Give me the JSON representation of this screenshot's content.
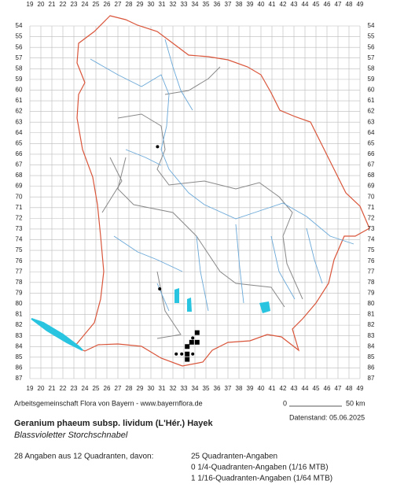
{
  "grid": {
    "columns": [
      19,
      20,
      21,
      22,
      23,
      24,
      25,
      26,
      27,
      28,
      29,
      30,
      31,
      32,
      33,
      34,
      35,
      36,
      37,
      38,
      39,
      40,
      41,
      42,
      43,
      44,
      45,
      46,
      47,
      48,
      49
    ],
    "rows": [
      54,
      55,
      56,
      57,
      58,
      59,
      60,
      61,
      62,
      63,
      64,
      65,
      66,
      67,
      68,
      69,
      70,
      71,
      72,
      73,
      74,
      75,
      76,
      77,
      78,
      79,
      80,
      81,
      82,
      83,
      84,
      85,
      86,
      87
    ]
  },
  "records": [
    {
      "shape": "square",
      "col": 34.2,
      "row": 82.7
    },
    {
      "shape": "square",
      "col": 34.2,
      "row": 83.6
    },
    {
      "shape": "square",
      "col": 33.3,
      "row": 84.0
    },
    {
      "shape": "square",
      "col": 33.3,
      "row": 84.7
    },
    {
      "shape": "square",
      "col": 33.3,
      "row": 85.2
    },
    {
      "shape": "square",
      "col": 33.7,
      "row": 83.6
    },
    {
      "shape": "dot",
      "col": 32.3,
      "row": 84.7
    },
    {
      "shape": "dot",
      "col": 32.8,
      "row": 84.7
    },
    {
      "shape": "dot",
      "col": 33.8,
      "row": 84.7
    },
    {
      "shape": "dot",
      "col": 33.8,
      "row": 83.2
    },
    {
      "shape": "dot",
      "col": 30.8,
      "row": 78.6
    },
    {
      "shape": "dot",
      "col": 30.6,
      "row": 65.3
    }
  ],
  "footer": {
    "credit": "Arbeitsgemeinschaft Flora von Bayern - www.bayernflora.de",
    "scale_start": "0",
    "scale_end": "50 km",
    "date": "Datenstand: 05.06.2025"
  },
  "species": {
    "scientific": "Geranium phaeum subsp. lividum (L'Hér.) Hayek",
    "common": "Blassvioletter Storchschnabel"
  },
  "stats": {
    "summary": "28 Angaben aus 12 Quadranten, davon:",
    "lines": [
      "25 Quadranten-Angaben",
      "0 1/4-Quadranten-Angaben (1/16 MTB)",
      "1 1/16-Quadranten-Angaben (1/64 MTB)"
    ]
  }
}
